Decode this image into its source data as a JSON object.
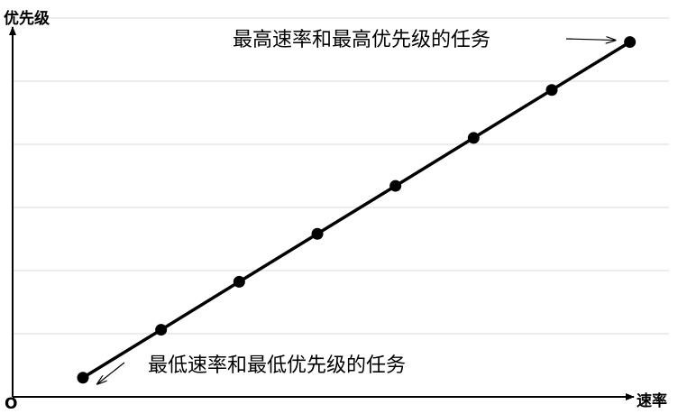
{
  "chart_data": {
    "type": "line",
    "title": "",
    "xlabel": "速率",
    "ylabel": "优先级",
    "origin_label": "O",
    "x_axis_ticks": "none",
    "y_axis_ticks": "none",
    "grid": "horizontal",
    "legend": "none",
    "x": [
      1,
      2,
      3,
      4,
      5,
      6,
      7,
      8
    ],
    "series": [
      {
        "values": [
          1,
          2,
          3,
          4,
          5,
          6,
          7,
          8
        ]
      }
    ],
    "xlim": [
      0.1,
      8.5
    ],
    "ylim": [
      0.6,
      8.5
    ],
    "annotations": [
      {
        "text": "最低速率和最低优先级的任务",
        "points_to": {
          "x": 1,
          "y": 1
        }
      },
      {
        "text": "最高速率和最高优先级的任务",
        "points_to": {
          "x": 8,
          "y": 8
        }
      }
    ],
    "colors": {
      "line": "#000000",
      "marker": "#000000",
      "grid": "#d9d9d9",
      "axis": "#000000"
    }
  }
}
